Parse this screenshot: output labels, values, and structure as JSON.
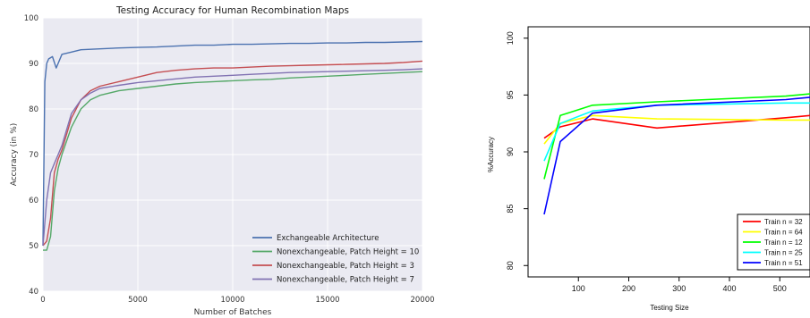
{
  "chart_data": [
    {
      "type": "line",
      "title": "Testing Accuracy for Human Recombination Maps",
      "xlabel": "Number of Batches",
      "ylabel": "Accuracy (in %)",
      "xlim": [
        0,
        20000
      ],
      "ylim": [
        40,
        100
      ],
      "xticks": [
        "0",
        "5000",
        "10000",
        "15000",
        "20000"
      ],
      "yticks": [
        "40",
        "50",
        "60",
        "70",
        "80",
        "90",
        "100"
      ],
      "grid": true,
      "legend_position": "lower-right",
      "series": [
        {
          "name": "Exchangeable Architecture",
          "color": "#4c72b0",
          "x": [
            0,
            100,
            200,
            300,
            500,
            700,
            1000,
            1500,
            2000,
            3000,
            4000,
            5000,
            6000,
            7000,
            8000,
            9000,
            10000,
            11000,
            12000,
            13000,
            14000,
            15000,
            16000,
            17000,
            18000,
            19000,
            20000
          ],
          "y": [
            50,
            86,
            90,
            91,
            91.5,
            89,
            92,
            92.5,
            93,
            93.2,
            93.4,
            93.5,
            93.6,
            93.8,
            94,
            94,
            94.2,
            94.2,
            94.3,
            94.4,
            94.4,
            94.5,
            94.5,
            94.6,
            94.6,
            94.7,
            94.8
          ]
        },
        {
          "name": "Nonexchangeable, Patch Height = 10",
          "color": "#55a868",
          "x": [
            0,
            200,
            400,
            600,
            800,
            1000,
            1500,
            2000,
            2500,
            3000,
            4000,
            5000,
            6000,
            7000,
            8000,
            9000,
            10000,
            11000,
            12000,
            13000,
            14000,
            15000,
            16000,
            17000,
            18000,
            19000,
            20000
          ],
          "y": [
            49,
            49,
            52,
            62,
            67,
            70,
            76,
            80,
            82,
            83,
            84,
            84.5,
            85,
            85.5,
            85.8,
            86,
            86.2,
            86.4,
            86.5,
            86.8,
            87,
            87.2,
            87.4,
            87.6,
            87.8,
            88,
            88.2
          ]
        },
        {
          "name": "Nonexchangeable, Patch Height = 3",
          "color": "#c44e52",
          "x": [
            0,
            200,
            400,
            600,
            800,
            1000,
            1500,
            2000,
            2500,
            3000,
            4000,
            5000,
            6000,
            7000,
            8000,
            9000,
            10000,
            11000,
            12000,
            13000,
            14000,
            15000,
            16000,
            17000,
            18000,
            19000,
            20000
          ],
          "y": [
            50,
            51,
            56,
            66,
            69,
            71,
            78,
            82,
            84,
            85,
            86,
            87,
            88,
            88.5,
            88.8,
            89,
            89,
            89.2,
            89.4,
            89.5,
            89.6,
            89.7,
            89.8,
            89.9,
            90,
            90.2,
            90.5
          ]
        },
        {
          "name": "Nonexchangeable, Patch Height = 7",
          "color": "#8172b2",
          "x": [
            0,
            200,
            400,
            600,
            800,
            1000,
            1500,
            2000,
            2500,
            3000,
            4000,
            5000,
            6000,
            7000,
            8000,
            9000,
            10000,
            11000,
            12000,
            13000,
            14000,
            15000,
            16000,
            17000,
            18000,
            19000,
            20000
          ],
          "y": [
            50,
            60,
            66,
            68,
            70,
            72,
            79,
            82,
            83.5,
            84.5,
            85.2,
            85.8,
            86.2,
            86.6,
            87,
            87.2,
            87.4,
            87.6,
            87.8,
            88,
            88.1,
            88.2,
            88.3,
            88.4,
            88.5,
            88.6,
            88.8
          ]
        }
      ]
    },
    {
      "type": "line",
      "title": "",
      "xlabel": "Testing Size",
      "ylabel": "%Accuracy",
      "xlim": [
        0,
        560
      ],
      "ylim": [
        79,
        101
      ],
      "xticks": [
        "100",
        "200",
        "300",
        "400",
        "500"
      ],
      "yticks": [
        "80",
        "85",
        "90",
        "95",
        "100"
      ],
      "grid": false,
      "legend_position": "bottom-right",
      "series": [
        {
          "name": "Train n = 32",
          "color": "#ff0000",
          "x": [
            32,
            64,
            128,
            256,
            512,
            560
          ],
          "y": [
            91.2,
            92.2,
            92.9,
            92.1,
            93.0,
            93.2
          ]
        },
        {
          "name": "Train n = 64",
          "color": "#ffff00",
          "x": [
            32,
            64,
            128,
            256,
            512,
            560
          ],
          "y": [
            90.7,
            92.5,
            93.2,
            92.9,
            92.8,
            92.8
          ]
        },
        {
          "name": "Train n = 12",
          "color": "#00ff00",
          "x": [
            32,
            64,
            128,
            256,
            512,
            560
          ],
          "y": [
            87.6,
            93.2,
            94.1,
            94.4,
            94.9,
            95.1
          ]
        },
        {
          "name": "Train n = 25",
          "color": "#00ffff",
          "x": [
            32,
            64,
            128,
            256,
            512,
            560
          ],
          "y": [
            89.2,
            92.5,
            93.6,
            94.1,
            94.3,
            94.3
          ]
        },
        {
          "name": "Train n = 51",
          "color": "#0000ff",
          "x": [
            32,
            64,
            128,
            256,
            512,
            560
          ],
          "y": [
            84.5,
            90.9,
            93.4,
            94.1,
            94.6,
            94.8
          ]
        }
      ]
    }
  ]
}
